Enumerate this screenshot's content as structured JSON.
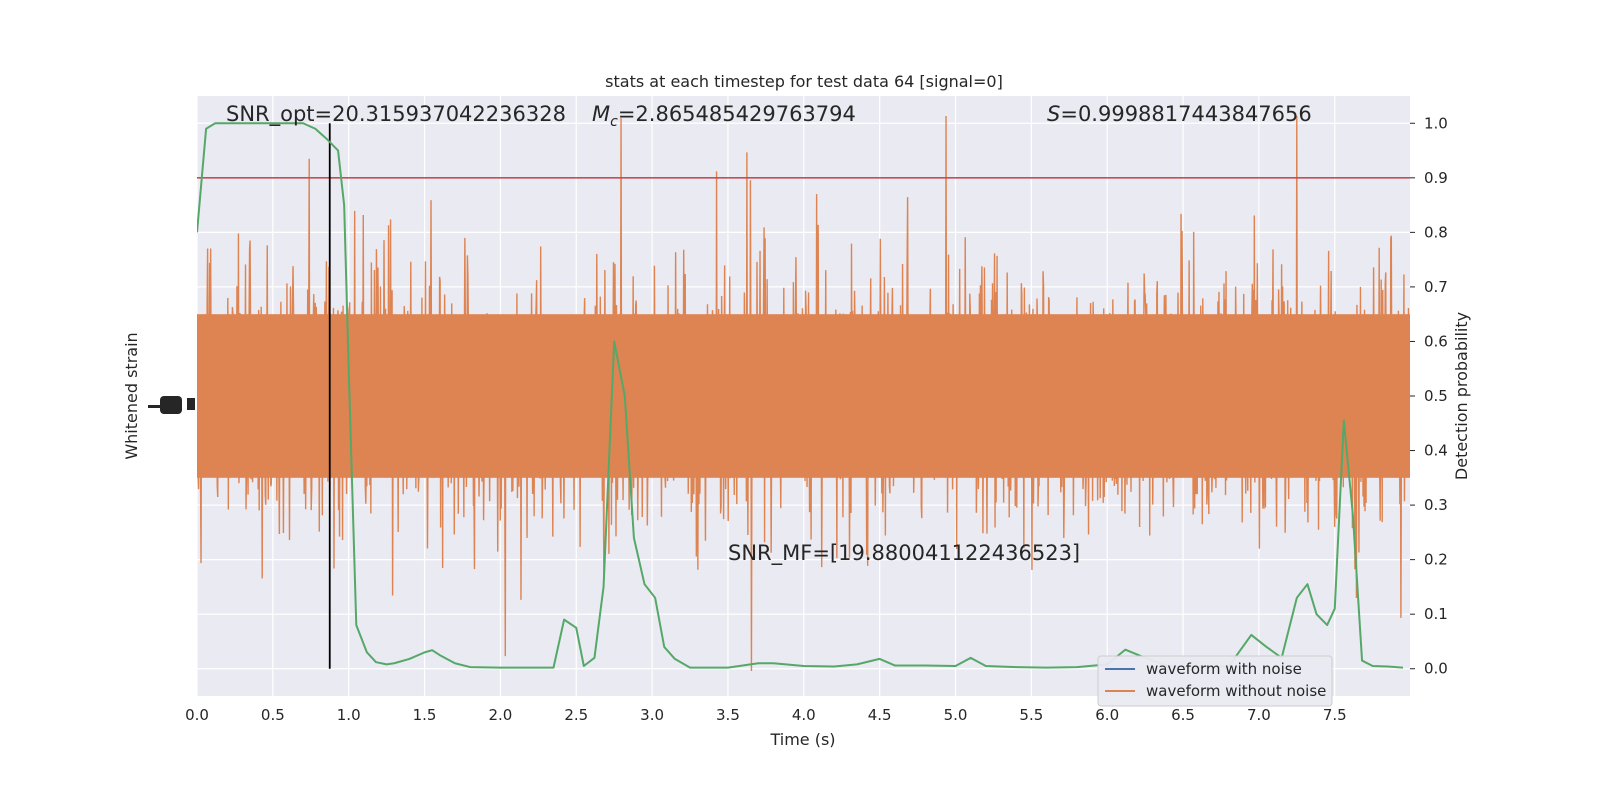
{
  "chart_data": {
    "type": "line",
    "title": "stats at each timestep for test data 64 [signal=0]",
    "xlabel": "Time (s)",
    "ylabel_left": "Whitened strain",
    "ylabel_right": "Detection probability",
    "xlim": [
      0.0,
      8.0
    ],
    "ylim_right": [
      -0.05,
      1.05
    ],
    "xticks": [
      "0.0",
      "0.5",
      "1.0",
      "1.5",
      "2.0",
      "2.5",
      "3.0",
      "3.5",
      "4.0",
      "4.5",
      "5.0",
      "5.5",
      "6.0",
      "6.5",
      "7.0",
      "7.5"
    ],
    "yticks_right": [
      "0.0",
      "0.1",
      "0.2",
      "0.3",
      "0.4",
      "0.5",
      "0.6",
      "0.7",
      "0.8",
      "0.9",
      "1.0"
    ],
    "grid": true,
    "legend_position": "lower-right",
    "annotations": {
      "snr_opt": "SNR_opt=20.315937042236328",
      "mc_symbol": "M",
      "mc_sub": "c",
      "mc_value": "=2.865485429763794",
      "s_symbol": "S",
      "s_value": "=0.9998817443847656",
      "snr_mf": "SNR_MF=[19.880041122436523]"
    },
    "threshold": 0.9,
    "marker_time": 0.875,
    "series": [
      {
        "name": "waveform with noise",
        "color": "#4c72b0"
      },
      {
        "name": "waveform without noise",
        "color": "#dd8452"
      }
    ],
    "probability": {
      "color": "#55a868",
      "t": [
        0.0,
        0.06,
        0.12,
        0.25,
        0.5,
        0.7,
        0.78,
        0.86,
        0.93,
        0.97,
        1.0,
        1.05,
        1.12,
        1.18,
        1.25,
        1.3,
        1.4,
        1.5,
        1.55,
        1.6,
        1.7,
        1.8,
        2.0,
        2.2,
        2.35,
        2.42,
        2.5,
        2.55,
        2.62,
        2.68,
        2.75,
        2.82,
        2.88,
        2.95,
        3.02,
        3.08,
        3.15,
        3.25,
        3.5,
        3.7,
        3.8,
        4.0,
        4.2,
        4.35,
        4.5,
        4.6,
        4.8,
        5.0,
        5.1,
        5.2,
        5.4,
        5.6,
        5.8,
        6.0,
        6.12,
        6.25,
        6.4,
        6.6,
        6.8,
        6.95,
        7.05,
        7.15,
        7.25,
        7.32,
        7.38,
        7.45,
        7.5,
        7.56,
        7.62,
        7.68,
        7.75,
        7.85,
        7.95
      ],
      "p": [
        0.8,
        0.99,
        1.0,
        1.0,
        1.0,
        1.0,
        0.99,
        0.97,
        0.95,
        0.85,
        0.55,
        0.08,
        0.03,
        0.012,
        0.008,
        0.01,
        0.018,
        0.03,
        0.034,
        0.025,
        0.01,
        0.003,
        0.002,
        0.002,
        0.002,
        0.09,
        0.075,
        0.005,
        0.02,
        0.15,
        0.6,
        0.5,
        0.24,
        0.155,
        0.13,
        0.04,
        0.018,
        0.002,
        0.002,
        0.01,
        0.01,
        0.005,
        0.004,
        0.008,
        0.018,
        0.006,
        0.006,
        0.005,
        0.02,
        0.005,
        0.003,
        0.002,
        0.003,
        0.008,
        0.035,
        0.02,
        0.005,
        0.004,
        0.004,
        0.062,
        0.04,
        0.02,
        0.13,
        0.155,
        0.1,
        0.08,
        0.11,
        0.455,
        0.28,
        0.015,
        0.005,
        0.004,
        0.002
      ]
    }
  }
}
